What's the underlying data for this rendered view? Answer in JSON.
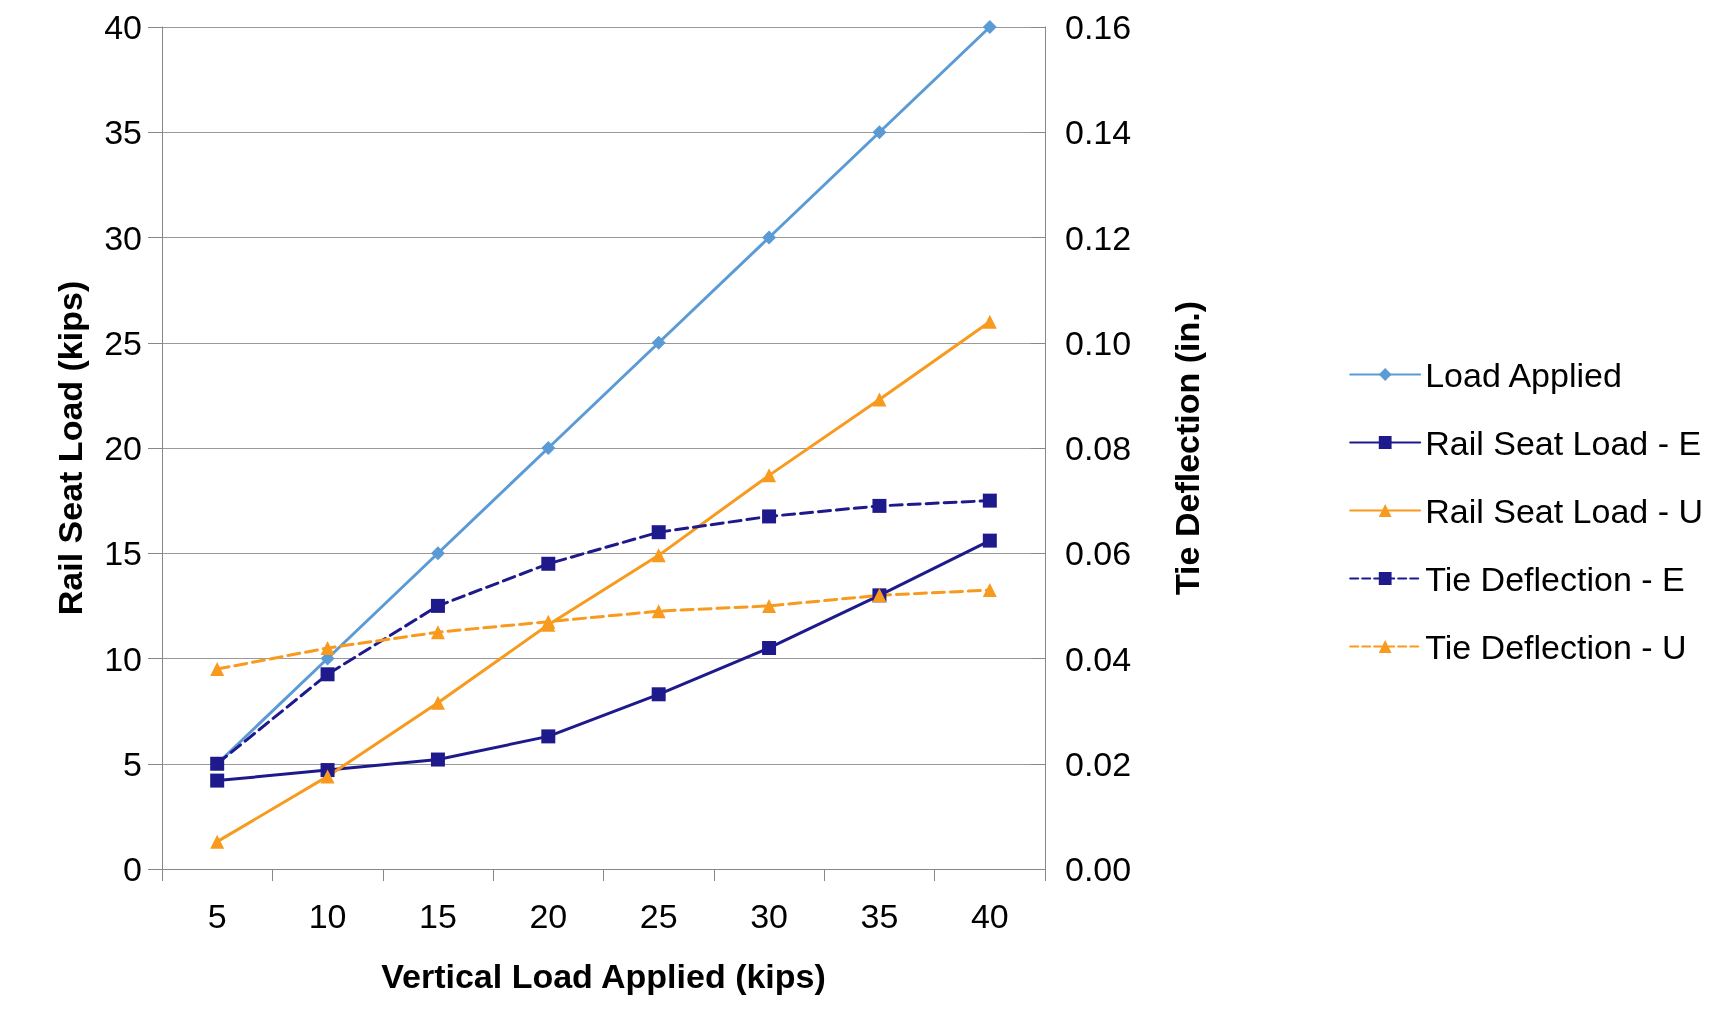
{
  "chart_data": {
    "type": "line",
    "xlabel": "Vertical Load Applied (kips)",
    "ylabel": "Rail Seat Load (kips)",
    "y2label": "Tie Deflection (in.)",
    "categories": [
      "5",
      "10",
      "15",
      "20",
      "25",
      "30",
      "35",
      "40"
    ],
    "series": [
      {
        "name": "Load Applied",
        "color": "#5b9bd5",
        "marker": "diamond",
        "line_style": "solid",
        "values": [
          5,
          10,
          15,
          20,
          25,
          30,
          35,
          40
        ]
      },
      {
        "name": "Rail Seat Load - E",
        "color": "#1f1a8c",
        "marker": "square",
        "line_style": "solid",
        "values": [
          4.2,
          4.7,
          5.2,
          6.3,
          8.3,
          10.5,
          13.0,
          15.6
        ]
      },
      {
        "name": "Rail Seat Load - U",
        "color": "#f79a1e",
        "marker": "triangle",
        "line_style": "solid",
        "values": [
          1.3,
          4.4,
          7.9,
          11.6,
          14.9,
          18.7,
          22.3,
          26.0
        ]
      },
      {
        "name": "Tie Deflection - E",
        "color": "#1f1a8c",
        "marker": "square",
        "line_style": "dashed",
        "axis": "y2",
        "values": [
          0.02,
          0.037,
          0.05,
          0.058,
          0.064,
          0.067,
          0.069,
          0.07
        ]
      },
      {
        "name": "Tie Deflection - U",
        "color": "#f79a1e",
        "marker": "triangle",
        "line_style": "dashed",
        "axis": "y2",
        "values": [
          0.038,
          0.042,
          0.045,
          0.047,
          0.049,
          0.05,
          0.052,
          0.053
        ]
      }
    ],
    "ylim": [
      0,
      40
    ],
    "yticks": [
      0,
      5,
      10,
      15,
      20,
      25,
      30,
      35,
      40
    ],
    "y2lim": [
      0,
      0.16
    ],
    "y2ticks": [
      {
        "value": 0,
        "label": "0.00"
      },
      {
        "value": 0.02,
        "label": "0.02"
      },
      {
        "value": 0.04,
        "label": "0.04"
      },
      {
        "value": 0.06,
        "label": "0.06"
      },
      {
        "value": 0.08,
        "label": "0.08"
      },
      {
        "value": 0.1,
        "label": "0.10"
      },
      {
        "value": 0.12,
        "label": "0.12"
      },
      {
        "value": 0.14,
        "label": "0.14"
      },
      {
        "value": 0.16,
        "label": "0.16"
      }
    ],
    "grid": "y",
    "legend": "right"
  }
}
